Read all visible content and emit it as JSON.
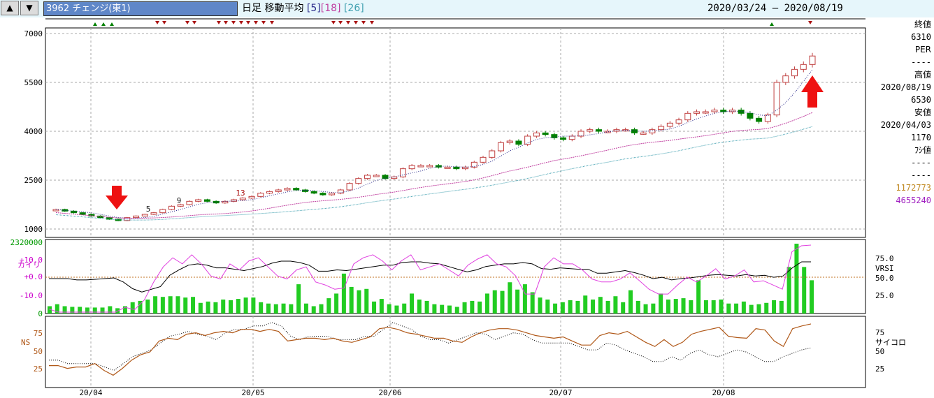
{
  "toolbar": {
    "up_icon": "▲",
    "down_icon": "▼",
    "ticker": "3962 チェンジ(東1)",
    "title": "日足 移動平均",
    "ma_labels": [
      "[5]",
      "[18]",
      "[26]"
    ],
    "date_range": "2020/03/24 – 2020/08/19"
  },
  "sidebar": {
    "close_label": "終値",
    "close_value": "6310",
    "per_label": "PER",
    "per_value": "----",
    "high_label": "高値",
    "high_date": "2020/08/19",
    "high_value": "6530",
    "low_label": "安値",
    "low_date": "2020/04/03",
    "low_value": "1170",
    "fushi_label": "ﾌｼ値",
    "fushi_value1": "----",
    "fushi_value2": "----",
    "volume1": "1172773",
    "volume2": "4655240"
  },
  "colors": {
    "up_candle": "#c04040",
    "down_candle": "#008000",
    "volume_bar": "#22cc22",
    "ma5": "#2a2a8a",
    "ma18": "#c040a0",
    "ma26": "#40a0b0",
    "kairi": "#e040e0",
    "vrsi": "#000000",
    "ns": "#b05818",
    "psycho": "#000000",
    "arrow": "#ee1111",
    "signal_up": "#008000",
    "signal_down": "#aa1111",
    "volume1_text": "#c08820",
    "volume2_text": "#a020c0"
  },
  "chart_data": [
    {
      "type": "candlestick",
      "title": "",
      "x": [
        "20/04",
        "20/05",
        "20/06",
        "20/07",
        "20/08"
      ],
      "yticks": [
        1000,
        2500,
        4000,
        5500,
        7000
      ],
      "ylim": [
        800,
        7200
      ],
      "moving_averages": [
        "5",
        "18",
        "26"
      ],
      "annotations": [
        "5",
        "9",
        "13"
      ],
      "grid": true,
      "closes_approx": [
        1600,
        1550,
        1500,
        1450,
        1400,
        1350,
        1300,
        1260,
        1350,
        1400,
        1450,
        1500,
        1600,
        1700,
        1750,
        1850,
        1900,
        1850,
        1800,
        1850,
        1900,
        1950,
        2000,
        2100,
        2150,
        2200,
        2250,
        2200,
        2150,
        2100,
        2050,
        2100,
        2200,
        2400,
        2550,
        2650,
        2650,
        2550,
        2600,
        2850,
        2950,
        2950,
        2950,
        2900,
        2900,
        2850,
        2900,
        3050,
        3200,
        3400,
        3650,
        3700,
        3600,
        3850,
        3950,
        3900,
        3800,
        3750,
        3850,
        4000,
        4050,
        4000,
        4000,
        4050,
        4050,
        3950,
        3950,
        4050,
        4150,
        4250,
        4350,
        4550,
        4600,
        4600,
        4650,
        4600,
        4650,
        4550,
        4400,
        4300,
        4500,
        5500,
        5700,
        5900,
        6050,
        6310
      ]
    },
    {
      "type": "bar",
      "title": "",
      "series": [
        {
          "name": "VRSI"
        },
        {
          "name": "カイリ"
        }
      ],
      "ylabels_left": [
        "2320000",
        "+10.0",
        "+0.0",
        "-10.0",
        "0"
      ],
      "ylabels_right": [
        "75.0",
        "VRSI",
        "50.0",
        "25.0"
      ],
      "volume_approx": [
        11,
        14,
        11,
        10,
        10,
        9,
        9,
        9,
        11,
        8,
        11,
        17,
        19,
        21,
        26,
        25,
        26,
        26,
        24,
        25,
        16,
        18,
        17,
        21,
        20,
        22,
        24,
        24,
        17,
        15,
        14,
        15,
        14,
        44,
        15,
        11,
        14,
        23,
        30,
        60,
        40,
        35,
        37,
        18,
        22,
        14,
        12,
        15,
        30,
        21,
        19,
        14,
        13,
        12,
        10,
        17,
        19,
        18,
        30,
        35,
        34,
        47,
        36,
        44,
        32,
        24,
        21,
        15,
        17,
        20,
        19,
        27,
        21,
        25,
        19,
        26,
        17,
        35,
        19,
        14,
        15,
        30,
        21,
        22,
        23,
        20,
        50,
        20,
        20,
        21,
        15,
        15,
        18,
        13,
        14,
        16,
        20,
        19,
        70,
        105,
        70,
        50
      ],
      "vrsi_approx": [
        50,
        50,
        50,
        48,
        48,
        49,
        50,
        51,
        45,
        35,
        30,
        34,
        38,
        55,
        63,
        70,
        72,
        70,
        66,
        66,
        64,
        62,
        65,
        68,
        73,
        76,
        76,
        74,
        70,
        61,
        61,
        63,
        62,
        64,
        66,
        68,
        70,
        70,
        74,
        75,
        75,
        73,
        72,
        68,
        64,
        60,
        63,
        68,
        70,
        72,
        72,
        74,
        72,
        65,
        64,
        66,
        65,
        64,
        64,
        58,
        58,
        60,
        62,
        59,
        55,
        50,
        52,
        48,
        50,
        51,
        53,
        55,
        56,
        55,
        54,
        56,
        54,
        55,
        52,
        54,
        66,
        75,
        75
      ],
      "kairi_approx": [
        5,
        -5,
        -8,
        -10,
        -12,
        -8,
        -10,
        -6,
        8,
        4,
        20,
        50,
        75,
        90,
        80,
        95,
        80,
        60,
        55,
        80,
        70,
        85,
        90,
        75,
        60,
        55,
        70,
        75,
        50,
        45,
        38,
        40,
        80,
        90,
        95,
        85,
        70,
        85,
        95,
        70,
        75,
        80,
        70,
        60,
        78,
        88,
        95,
        80,
        75,
        60,
        30,
        30,
        75,
        90,
        80,
        80,
        70,
        55,
        50,
        50,
        55,
        65,
        52,
        38,
        30,
        30,
        45,
        58,
        50,
        60,
        72,
        55,
        60,
        70,
        50,
        52,
        45,
        38,
        100,
        110,
        118
      ]
    },
    {
      "type": "line",
      "title": "",
      "series": [
        {
          "name": "NS"
        },
        {
          "name": "サイコロ"
        }
      ],
      "ylabels_left": [
        "75",
        "50",
        "25"
      ],
      "ylabels_right": [
        "75",
        "サイコロ",
        "50",
        "25"
      ],
      "ylim": [
        0,
        100
      ],
      "ns_approx": [
        32,
        32,
        28,
        30,
        30,
        35,
        25,
        18,
        28,
        40,
        48,
        52,
        68,
        72,
        70,
        78,
        80,
        76,
        80,
        82,
        80,
        85,
        85,
        82,
        85,
        82,
        68,
        70,
        72,
        72,
        70,
        72,
        68,
        66,
        70,
        74,
        86,
        88,
        85,
        80,
        78,
        75,
        72,
        72,
        68,
        66,
        74,
        80,
        84,
        86,
        86,
        84,
        80,
        76,
        74,
        72,
        74,
        68,
        62,
        62,
        76,
        80,
        78,
        82,
        74,
        66,
        60,
        70,
        60,
        66,
        78,
        82,
        85,
        88,
        75,
        73,
        72,
        86,
        84,
        68,
        60,
        86,
        90,
        93
      ],
      "psycho_approx": [
        40,
        40,
        35,
        35,
        35,
        35,
        30,
        25,
        35,
        45,
        50,
        55,
        65,
        75,
        78,
        82,
        78,
        75,
        70,
        80,
        85,
        85,
        90,
        90,
        95,
        90,
        75,
        70,
        75,
        75,
        75,
        70,
        70,
        70,
        75,
        75,
        85,
        95,
        90,
        85,
        75,
        70,
        70,
        65,
        70,
        75,
        80,
        78,
        70,
        75,
        80,
        78,
        70,
        65,
        65,
        65,
        65,
        60,
        55,
        55,
        65,
        62,
        55,
        50,
        45,
        38,
        38,
        45,
        40,
        50,
        55,
        48,
        45,
        50,
        55,
        52,
        45,
        38,
        38,
        45,
        50,
        55,
        58
      ]
    }
  ]
}
